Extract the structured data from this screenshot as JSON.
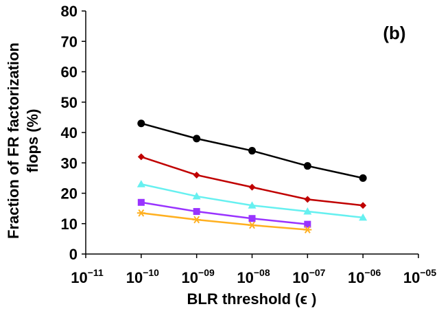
{
  "chart_data": {
    "type": "line",
    "panel_label": "(b)",
    "xlabel": "BLR threshold (ϵ )",
    "ylabel_lines": [
      "Fraction of FR factorization",
      "flops (%)"
    ],
    "xscale": "log",
    "xlim": [
      1e-11,
      1e-05
    ],
    "ylim": [
      0,
      80
    ],
    "x_tick_labels": [
      {
        "value": 1e-11,
        "base": "10",
        "exp": "−11"
      },
      {
        "value": 1e-10,
        "base": "10",
        "exp": "−10"
      },
      {
        "value": 1e-09,
        "base": "10",
        "exp": "−09"
      },
      {
        "value": 1e-08,
        "base": "10",
        "exp": "−08"
      },
      {
        "value": 1e-07,
        "base": "10",
        "exp": "−07"
      },
      {
        "value": 1e-06,
        "base": "10",
        "exp": "−06"
      },
      {
        "value": 1e-05,
        "base": "10",
        "exp": "−05"
      }
    ],
    "y_ticks": [
      0,
      10,
      20,
      30,
      40,
      50,
      60,
      70,
      80
    ],
    "grid": false,
    "legend": "none",
    "series": [
      {
        "color": "#000000",
        "marker": "circle",
        "x": [
          1e-10,
          1e-09,
          1e-08,
          1e-07,
          1e-06
        ],
        "y": [
          43,
          38,
          34,
          29,
          25
        ]
      },
      {
        "color": "#c00000",
        "marker": "diamond",
        "x": [
          1e-10,
          1e-09,
          1e-08,
          1e-07,
          1e-06
        ],
        "y": [
          32,
          26,
          22,
          18,
          16
        ]
      },
      {
        "color": "#66f0f0",
        "marker": "triangle",
        "x": [
          1e-10,
          1e-09,
          1e-08,
          1e-07,
          1e-06
        ],
        "y": [
          23,
          19,
          16,
          14,
          12
        ]
      },
      {
        "color": "#9933ff",
        "marker": "square",
        "x": [
          1e-10,
          1e-09,
          1e-08,
          1e-07
        ],
        "y": [
          17,
          14,
          11.7,
          9.8
        ]
      },
      {
        "color": "#ffb020",
        "marker": "asterisk",
        "x": [
          1e-10,
          1e-09,
          1e-08,
          1e-07
        ],
        "y": [
          13.5,
          11.3,
          9.5,
          8
        ]
      }
    ]
  }
}
